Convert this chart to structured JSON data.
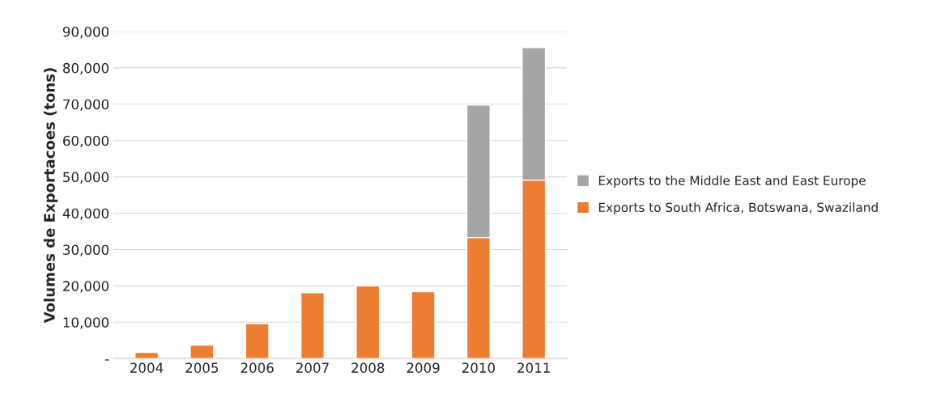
{
  "chart_data": {
    "type": "bar",
    "stacked": true,
    "ylabel": "Volumes de Exportacoes (tons)",
    "categories": [
      "2004",
      "2005",
      "2006",
      "2007",
      "2008",
      "2009",
      "2010",
      "2011"
    ],
    "series": [
      {
        "name": "Exports to South Africa, Botswana, Swaziland",
        "color": "#ed7d31",
        "values": [
          1700,
          3700,
          9600,
          18100,
          20000,
          18400,
          33300,
          49100
        ]
      },
      {
        "name": "Exports to the Middle East and East Europe",
        "color": "#a5a5a5",
        "values": [
          null,
          null,
          null,
          null,
          null,
          null,
          36500,
          36500
        ]
      }
    ],
    "ylim": [
      0,
      90000
    ],
    "yticks": [
      {
        "value": 0,
        "label": "-"
      },
      {
        "value": 10000,
        "label": "10,000"
      },
      {
        "value": 20000,
        "label": "20,000"
      },
      {
        "value": 30000,
        "label": "30,000"
      },
      {
        "value": 40000,
        "label": "40,000"
      },
      {
        "value": 50000,
        "label": "50,000"
      },
      {
        "value": 60000,
        "label": "60,000"
      },
      {
        "value": 70000,
        "label": "70,000"
      },
      {
        "value": 80000,
        "label": "80,000"
      },
      {
        "value": 90000,
        "label": "90,000"
      }
    ],
    "grid": "y",
    "legend": "right"
  }
}
